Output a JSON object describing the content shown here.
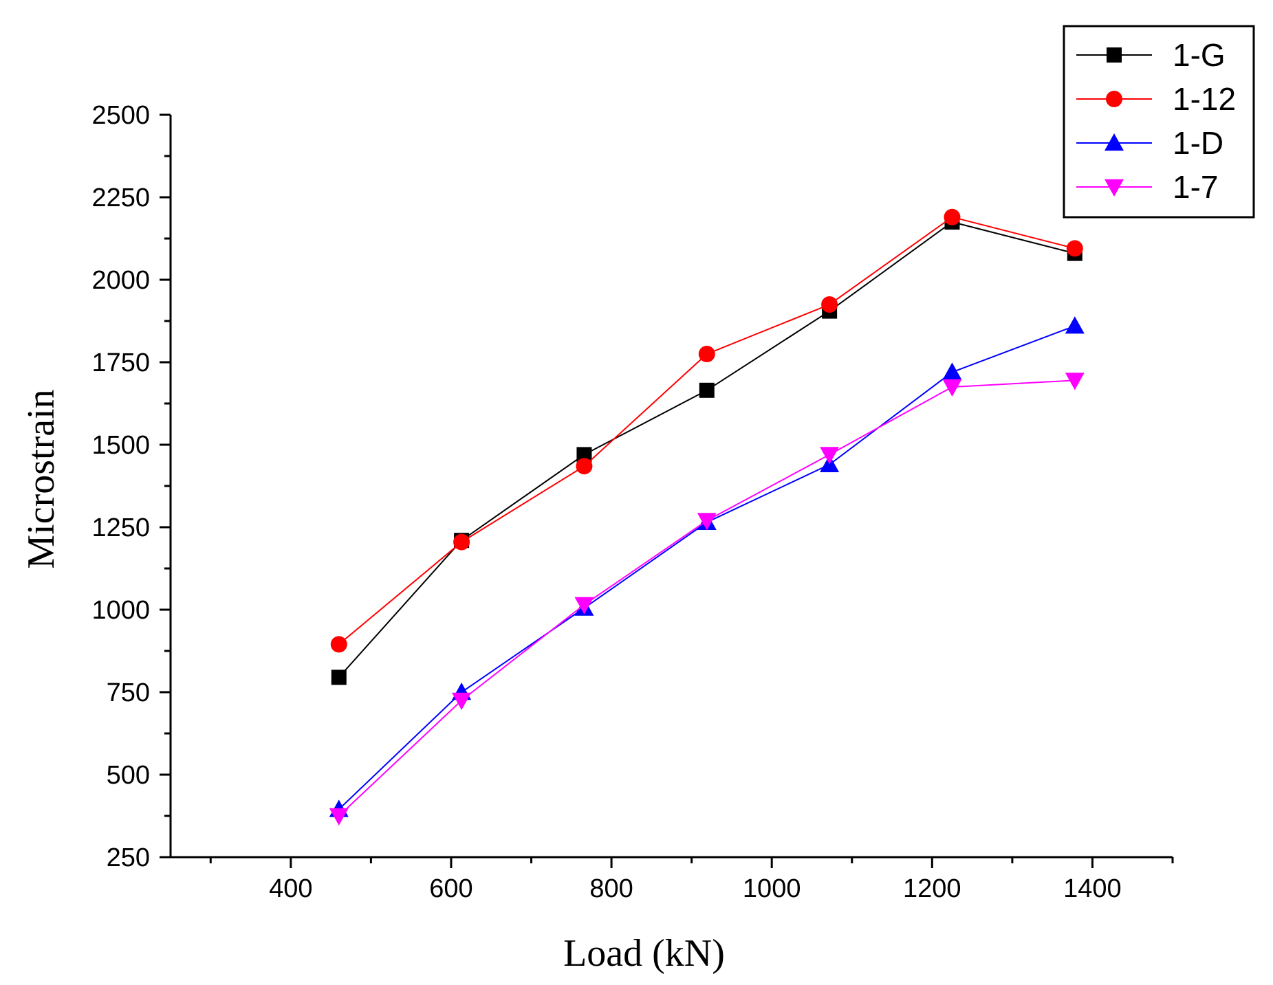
{
  "chart_data": {
    "type": "line",
    "title": "",
    "xlabel": "Load (kN)",
    "ylabel": "Microstrain",
    "xlim": [
      250,
      1500
    ],
    "ylim": [
      250,
      2500
    ],
    "x_ticks": [
      400,
      600,
      800,
      1000,
      1200,
      1400
    ],
    "y_ticks": [
      250,
      500,
      750,
      1000,
      1250,
      1500,
      1750,
      2000,
      2250,
      2500
    ],
    "x_tick_labels": [
      "400",
      "600",
      "800",
      "1000",
      "1200",
      "1400"
    ],
    "y_tick_labels": [
      "250",
      "500",
      "750",
      "1000",
      "1250",
      "1500",
      "1750",
      "2000",
      "2250",
      "2500"
    ],
    "grid": false,
    "legend_position": "top-right",
    "x": [
      460,
      613,
      766,
      919,
      1072,
      1225,
      1378
    ],
    "series": [
      {
        "name": "1-G",
        "color": "#000000",
        "marker": "square",
        "values": [
          795,
          1210,
          1470,
          1665,
          1905,
          2175,
          2080
        ]
      },
      {
        "name": "1-12",
        "color": "#ff0000",
        "marker": "circle",
        "values": [
          895,
          1205,
          1435,
          1775,
          1925,
          2190,
          2095
        ]
      },
      {
        "name": "1-D",
        "color": "#0000ff",
        "marker": "triangle-up",
        "values": [
          395,
          750,
          1005,
          1265,
          1440,
          1720,
          1860
        ]
      },
      {
        "name": "1-7",
        "color": "#ff00ff",
        "marker": "triangle-down",
        "values": [
          375,
          725,
          1015,
          1270,
          1470,
          1675,
          1695
        ]
      }
    ]
  }
}
